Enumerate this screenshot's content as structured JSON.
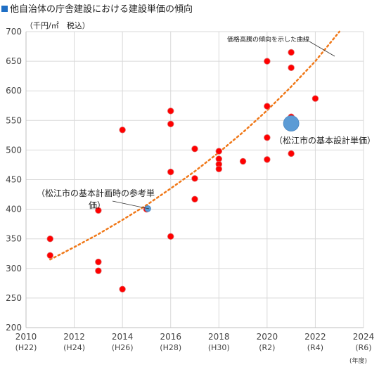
{
  "colors": {
    "title_square": "#1f6fc5",
    "point_fill": "#ff0000",
    "point_stroke": "#e06666",
    "highlight_fill": "#5b9bd5",
    "highlight_stroke": "#4a86c0",
    "trend_line": "#f07818",
    "grid": "#d9d9d9",
    "axis": "#bfbfbf"
  },
  "chart_data": {
    "type": "scatter",
    "title": "他自治体の庁舎建設における建設単価の傾向",
    "unit_label": "（千円/㎡　税込）",
    "x_unit_label": "(年度)",
    "xlim": [
      2010,
      2024
    ],
    "ylim": [
      200,
      700
    ],
    "grid": true,
    "x_ticks": [
      {
        "value": 2010,
        "label": "2010",
        "era": "(H22)"
      },
      {
        "value": 2012,
        "label": "2012",
        "era": "(H24)"
      },
      {
        "value": 2014,
        "label": "2014",
        "era": "(H26)"
      },
      {
        "value": 2016,
        "label": "2016",
        "era": "(H28)"
      },
      {
        "value": 2018,
        "label": "2018",
        "era": "(H30)"
      },
      {
        "value": 2020,
        "label": "2020",
        "era": "(R2)"
      },
      {
        "value": 2022,
        "label": "2022",
        "era": "(R4)"
      },
      {
        "value": 2024,
        "label": "2024",
        "era": "(R6)"
      }
    ],
    "y_ticks": [
      200,
      250,
      300,
      350,
      400,
      450,
      500,
      550,
      600,
      650,
      700
    ],
    "series": [
      {
        "values": [
          {
            "x": 2011.0,
            "y": 350
          },
          {
            "x": 2011.0,
            "y": 322
          },
          {
            "x": 2013.0,
            "y": 398
          },
          {
            "x": 2013.0,
            "y": 311
          },
          {
            "x": 2013.0,
            "y": 296
          },
          {
            "x": 2014.0,
            "y": 534
          },
          {
            "x": 2014.0,
            "y": 265
          },
          {
            "x": 2015.0,
            "y": 400
          },
          {
            "x": 2016.0,
            "y": 566
          },
          {
            "x": 2016.0,
            "y": 544
          },
          {
            "x": 2016.0,
            "y": 463
          },
          {
            "x": 2016.0,
            "y": 354
          },
          {
            "x": 2017.0,
            "y": 502
          },
          {
            "x": 2017.0,
            "y": 452
          },
          {
            "x": 2017.0,
            "y": 417
          },
          {
            "x": 2018.0,
            "y": 498
          },
          {
            "x": 2018.0,
            "y": 485
          },
          {
            "x": 2018.0,
            "y": 476
          },
          {
            "x": 2018.0,
            "y": 468
          },
          {
            "x": 2019.0,
            "y": 481
          },
          {
            "x": 2020.0,
            "y": 650
          },
          {
            "x": 2020.0,
            "y": 574
          },
          {
            "x": 2020.0,
            "y": 521
          },
          {
            "x": 2020.0,
            "y": 484
          },
          {
            "x": 2021.0,
            "y": 665
          },
          {
            "x": 2021.0,
            "y": 639
          },
          {
            "x": 2021.0,
            "y": 556
          },
          {
            "x": 2021.0,
            "y": 494
          },
          {
            "x": 2022.0,
            "y": 587
          }
        ]
      }
    ],
    "highlights": [
      {
        "x": 2015.05,
        "y": 401,
        "size": "small",
        "label": "（松江市の基本計画時の参考単価）"
      },
      {
        "x": 2021.0,
        "y": 545,
        "size": "large",
        "label": "（松江市の基本設計単価）"
      }
    ],
    "trendline": {
      "label": "価格高騰の傾向を示した曲線",
      "points": [
        {
          "x": 2011.0,
          "y": 315
        },
        {
          "x": 2012.0,
          "y": 336
        },
        {
          "x": 2013.0,
          "y": 358
        },
        {
          "x": 2014.0,
          "y": 382
        },
        {
          "x": 2015.0,
          "y": 407
        },
        {
          "x": 2016.0,
          "y": 435
        },
        {
          "x": 2017.0,
          "y": 464
        },
        {
          "x": 2018.0,
          "y": 496
        },
        {
          "x": 2019.0,
          "y": 530
        },
        {
          "x": 2020.0,
          "y": 567
        },
        {
          "x": 2021.0,
          "y": 607
        },
        {
          "x": 2022.0,
          "y": 650
        },
        {
          "x": 2023.0,
          "y": 700
        }
      ]
    }
  },
  "annotations": {
    "plan_label_line1": "（松江市の基本計画時の参考単",
    "plan_label_line2": "価）",
    "design_label": "（松江市の基本設計単価）",
    "trend_label": "価格高騰の傾向を示した曲線"
  }
}
